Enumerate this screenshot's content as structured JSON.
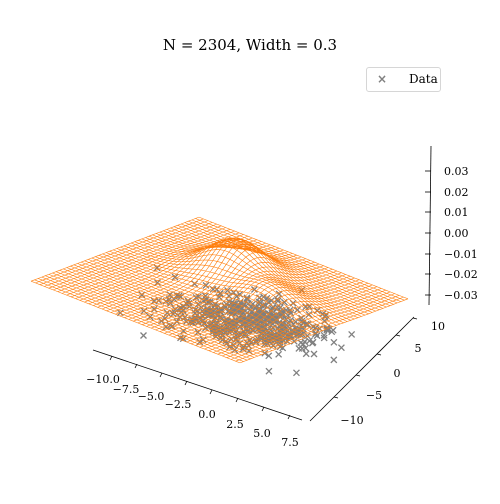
{
  "chart_data": {
    "type": "scatter",
    "title": "N = 2304, Width = 0.3",
    "legend": {
      "location": "upper right",
      "entries": [
        {
          "label": "Data",
          "marker": "x",
          "color": "#808080"
        }
      ]
    },
    "surface": {
      "type": "wireframe",
      "color": "#ff7f0e",
      "grid_size": 48,
      "x_range": [
        -11,
        8
      ],
      "y_range": [
        -10,
        11
      ],
      "peaks": [
        {
          "x": -2.5,
          "y": 4,
          "amplitude": 0.035
        },
        {
          "x": 2.5,
          "y": 1,
          "amplitude": 0.02
        }
      ]
    },
    "scatter_series": {
      "name": "Data",
      "color": "#808080",
      "marker": "x",
      "cluster_center": {
        "x": 0,
        "y": 2
      },
      "z": -0.03
    },
    "x_axis": {
      "ticks": [
        "−10.0",
        "−7.5",
        "−5.0",
        "−2.5",
        "0.0",
        "2.5",
        "5.0",
        "7.5"
      ],
      "range": [
        -11,
        8
      ]
    },
    "y_axis": {
      "ticks": [
        "−10",
        "−5",
        "0",
        "5",
        "10"
      ],
      "range": [
        -10,
        11
      ]
    },
    "z_axis": {
      "ticks": [
        "0.03",
        "0.02",
        "0.01",
        "0.00",
        "−0.01",
        "−0.02",
        "−0.03"
      ],
      "range": [
        -0.033,
        0.038
      ]
    }
  }
}
